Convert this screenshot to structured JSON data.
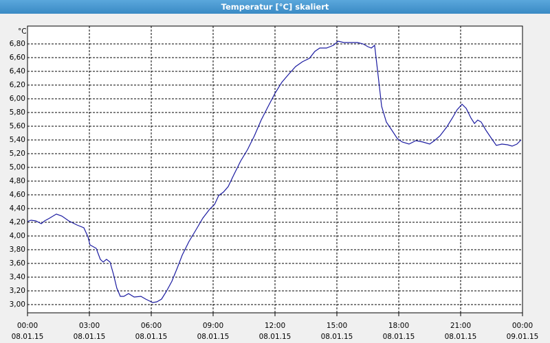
{
  "chart_data": {
    "type": "line",
    "title": "Temperatur [°C] skaliert",
    "y_label": "°C",
    "x": [
      0,
      0.17,
      0.4,
      0.67,
      0.83,
      1.07,
      1.4,
      1.67,
      2,
      2.4,
      2.73,
      2.93,
      3.03,
      3.33,
      3.53,
      3.67,
      3.83,
      4,
      4.17,
      4.33,
      4.5,
      4.67,
      4.9,
      5.17,
      5.5,
      5.73,
      6.07,
      6.27,
      6.5,
      6.73,
      7,
      7.27,
      7.5,
      7.83,
      8.17,
      8.5,
      8.83,
      9.07,
      9.27,
      9.5,
      9.73,
      10,
      10.33,
      10.67,
      11,
      11.33,
      11.67,
      12,
      12.33,
      12.67,
      13,
      13.33,
      13.67,
      13.93,
      14.17,
      14.5,
      14.83,
      15.07,
      15.33,
      15.67,
      16,
      16.27,
      16.5,
      16.67,
      16.83,
      17,
      17.17,
      17.4,
      17.67,
      17.93,
      18.17,
      18.5,
      18.83,
      19.17,
      19.5,
      19.73,
      20,
      20.33,
      20.6,
      20.83,
      21.07,
      21.27,
      21.5,
      21.67,
      21.83,
      22,
      22.23,
      22.5,
      22.73,
      23,
      23.27,
      23.5,
      23.73,
      23.93
    ],
    "series": [
      {
        "name": "Temperatur",
        "color": "#1a1aa0",
        "values": [
          4.21,
          4.23,
          4.22,
          4.18,
          4.22,
          4.26,
          4.32,
          4.29,
          4.22,
          4.16,
          4.12,
          3.99,
          3.87,
          3.82,
          3.66,
          3.62,
          3.66,
          3.62,
          3.44,
          3.24,
          3.12,
          3.12,
          3.16,
          3.11,
          3.12,
          3.08,
          3.03,
          3.04,
          3.08,
          3.19,
          3.34,
          3.54,
          3.72,
          3.92,
          4.09,
          4.26,
          4.39,
          4.46,
          4.59,
          4.64,
          4.72,
          4.89,
          5.09,
          5.26,
          5.46,
          5.69,
          5.89,
          6.08,
          6.24,
          6.36,
          6.47,
          6.54,
          6.59,
          6.69,
          6.74,
          6.74,
          6.78,
          6.84,
          6.82,
          6.82,
          6.82,
          6.8,
          6.76,
          6.74,
          6.78,
          6.34,
          5.89,
          5.66,
          5.54,
          5.42,
          5.37,
          5.34,
          5.39,
          5.37,
          5.34,
          5.39,
          5.46,
          5.59,
          5.72,
          5.84,
          5.92,
          5.86,
          5.72,
          5.64,
          5.69,
          5.66,
          5.54,
          5.42,
          5.32,
          5.34,
          5.33,
          5.31,
          5.34,
          5.4
        ]
      }
    ],
    "xlim": [
      0,
      24
    ],
    "xticks": [
      {
        "value": 0,
        "label": "00:00 08.01.15"
      },
      {
        "value": 3,
        "label": "03:00 08.01.15"
      },
      {
        "value": 6,
        "label": "06:00 08.01.15"
      },
      {
        "value": 9,
        "label": "09:00 08.01.15"
      },
      {
        "value": 12,
        "label": "12:00 08.01.15"
      },
      {
        "value": 15,
        "label": "15:00 08.01.15"
      },
      {
        "value": 18,
        "label": "18:00 08.01.15"
      },
      {
        "value": 21,
        "label": "21:00 08.01.15"
      },
      {
        "value": 24,
        "label": "00:00 09.01.15"
      }
    ],
    "ylim": [
      2.88,
      7.06
    ],
    "yticks": [
      {
        "value": 3.0,
        "label": "3,00"
      },
      {
        "value": 3.2,
        "label": "3,20"
      },
      {
        "value": 3.4,
        "label": "3,40"
      },
      {
        "value": 3.6,
        "label": "3,60"
      },
      {
        "value": 3.8,
        "label": "3,80"
      },
      {
        "value": 4.0,
        "label": "4,00"
      },
      {
        "value": 4.2,
        "label": "4,20"
      },
      {
        "value": 4.4,
        "label": "4,40"
      },
      {
        "value": 4.6,
        "label": "4,60"
      },
      {
        "value": 4.8,
        "label": "4,80"
      },
      {
        "value": 5.0,
        "label": "5,00"
      },
      {
        "value": 5.2,
        "label": "5,20"
      },
      {
        "value": 5.4,
        "label": "5,40"
      },
      {
        "value": 5.6,
        "label": "5,60"
      },
      {
        "value": 5.8,
        "label": "5,80"
      },
      {
        "value": 6.0,
        "label": "6,00"
      },
      {
        "value": 6.2,
        "label": "6,20"
      },
      {
        "value": 6.4,
        "label": "6,40"
      },
      {
        "value": 6.6,
        "label": "6,60"
      },
      {
        "value": 6.8,
        "label": "6,80"
      }
    ],
    "grid": true
  }
}
